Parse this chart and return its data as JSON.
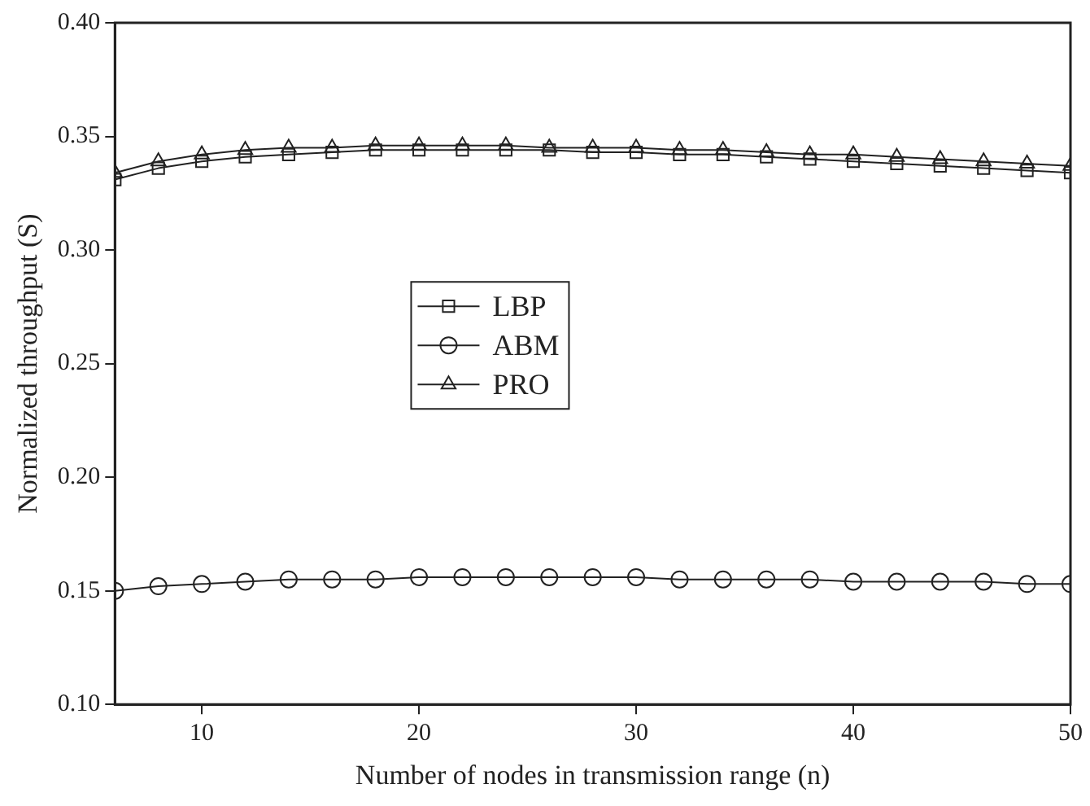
{
  "chart_data": {
    "type": "line",
    "xlabel": "Number of nodes in transmission range (n)",
    "ylabel": "Normalized throughput (S)",
    "x": [
      6,
      8,
      10,
      12,
      14,
      16,
      18,
      20,
      22,
      24,
      26,
      28,
      30,
      32,
      34,
      36,
      38,
      40,
      42,
      44,
      46,
      48,
      50
    ],
    "series": [
      {
        "name": "LBP",
        "color": "#222222",
        "marker": "square",
        "values": [
          0.331,
          0.336,
          0.339,
          0.341,
          0.342,
          0.343,
          0.344,
          0.344,
          0.344,
          0.344,
          0.344,
          0.343,
          0.343,
          0.342,
          0.342,
          0.341,
          0.34,
          0.339,
          0.338,
          0.337,
          0.336,
          0.335,
          0.334
        ]
      },
      {
        "name": "ABM",
        "color": "#222222",
        "marker": "circle",
        "values": [
          0.15,
          0.152,
          0.153,
          0.154,
          0.155,
          0.155,
          0.155,
          0.156,
          0.156,
          0.156,
          0.156,
          0.156,
          0.156,
          0.155,
          0.155,
          0.155,
          0.155,
          0.154,
          0.154,
          0.154,
          0.154,
          0.153,
          0.153
        ]
      },
      {
        "name": "PRO",
        "color": "#222222",
        "marker": "triangle",
        "values": [
          0.334,
          0.339,
          0.342,
          0.344,
          0.345,
          0.345,
          0.346,
          0.346,
          0.346,
          0.346,
          0.345,
          0.345,
          0.345,
          0.344,
          0.344,
          0.343,
          0.342,
          0.342,
          0.341,
          0.34,
          0.339,
          0.338,
          0.337
        ]
      }
    ],
    "xlim": [
      6,
      50
    ],
    "xticks": [
      10,
      20,
      30,
      40,
      50
    ],
    "ylim": [
      0.1,
      0.4
    ],
    "yticks": [
      {
        "value": 0.1,
        "label": "0.10"
      },
      {
        "value": 0.15,
        "label": "0.15"
      },
      {
        "value": 0.2,
        "label": "0.20"
      },
      {
        "value": 0.25,
        "label": "0.25"
      },
      {
        "value": 0.3,
        "label": "0.30"
      },
      {
        "value": 0.35,
        "label": "0.35"
      },
      {
        "value": 0.4,
        "label": "0.40"
      }
    ],
    "grid": false,
    "legend": "center left",
    "line_style": "solid"
  }
}
